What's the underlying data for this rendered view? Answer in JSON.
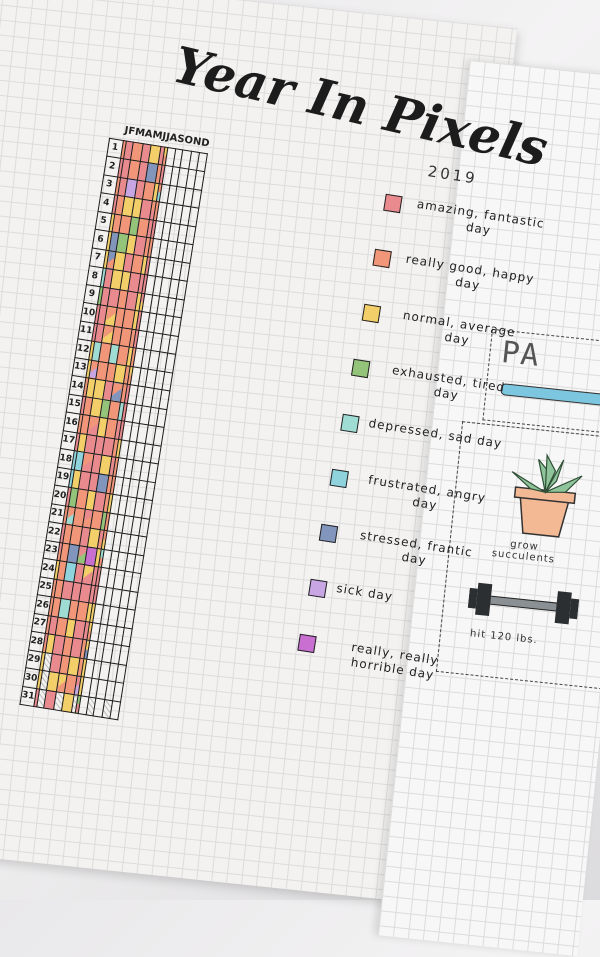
{
  "title": "Year In Pixels",
  "year": "2019",
  "months": [
    "J",
    "F",
    "M",
    "A",
    "M",
    "J",
    "J",
    "A",
    "S",
    "O",
    "N",
    "D"
  ],
  "days": 31,
  "legend": [
    {
      "label": "amazing, fantastic day",
      "color": "#e98a8f"
    },
    {
      "label": "really good, happy day",
      "color": "#f2967a"
    },
    {
      "label": "normal, average day",
      "color": "#f3cf6a"
    },
    {
      "label": "exhausted, tired day",
      "color": "#93c47a"
    },
    {
      "label": "depressed, sad day",
      "color": "#9fdcd3"
    },
    {
      "label": "frustrated, angry day",
      "color": "#8fd3dc"
    },
    {
      "label": "stressed, frantic day",
      "color": "#8195bd"
    },
    {
      "label": "sick day",
      "color": "#c7a6e3"
    },
    {
      "label": "really, really horrible day",
      "color": "#c86fd1"
    }
  ],
  "right_page": {
    "heading": "PA",
    "item1": "grow succulents",
    "item2": "hit 120 lbs."
  }
}
